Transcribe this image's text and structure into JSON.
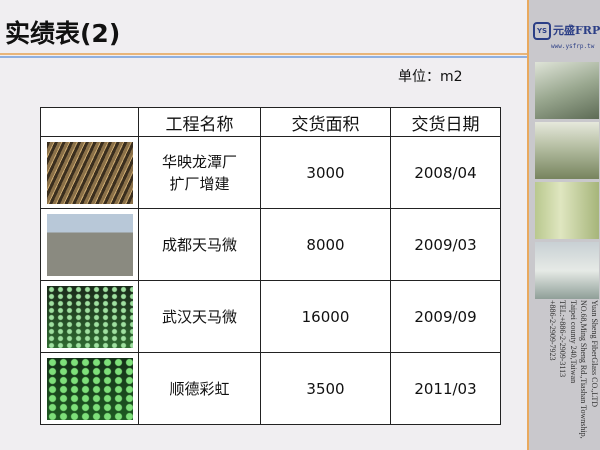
{
  "title": "实绩表(2)",
  "unit_label": "单位：m2",
  "logo": {
    "mark": "YS",
    "name": "元盛FRP",
    "url": "www.ysfrp.tw"
  },
  "address": [
    "Yuan Sheng FiberGlass CO.,LTD",
    "NO.68,Ming Sheng Rd.,Tiashan Township,",
    "Taipei county 240,Taiwan",
    "TEL:+886-2-2909-3113",
    "+886-2-2909-7923"
  ],
  "table": {
    "headers": [
      "",
      "工程名称",
      "交货面积",
      "交货日期"
    ],
    "rows": [
      {
        "name": [
          "华映龙潭厂",
          "扩厂增建"
        ],
        "area": "3000",
        "date": "2008/04"
      },
      {
        "name": [
          "成都天马微"
        ],
        "area": "8000",
        "date": "2009/03"
      },
      {
        "name": [
          "武汉天马微"
        ],
        "area": "16000",
        "date": "2009/09"
      },
      {
        "name": [
          "顺德彩虹"
        ],
        "area": "3500",
        "date": "2011/03"
      }
    ]
  },
  "colors": {
    "accent_orange": "#e8b57a",
    "accent_blue": "#8fb0e0",
    "brand": "#2c3f86"
  }
}
